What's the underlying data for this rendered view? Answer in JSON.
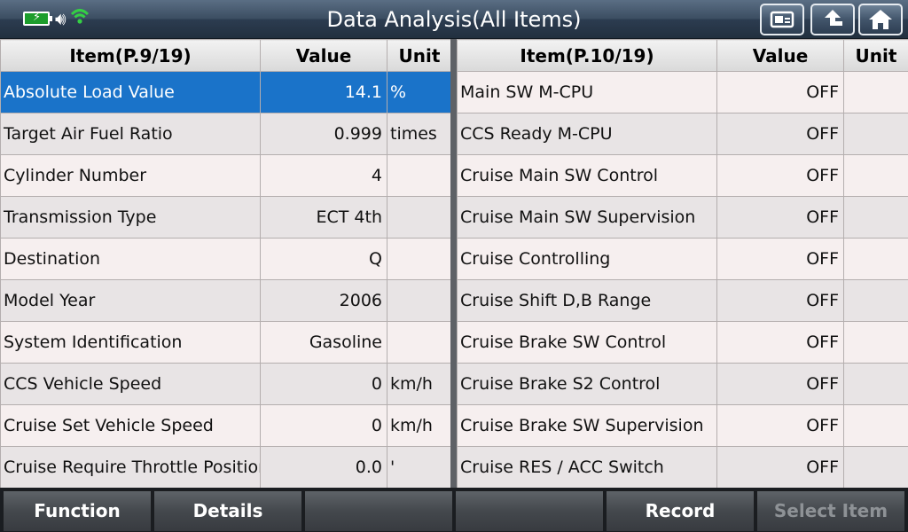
{
  "header": {
    "title": "Data Analysis(All Items)"
  },
  "icons": {
    "battery": "battery-icon",
    "volume": "volume-icon",
    "wifi": "wifi-icon",
    "screenshot": "screenshot-icon",
    "back": "back-icon",
    "home": "home-icon"
  },
  "left_table": {
    "headers": {
      "item": "Item(P.9/19)",
      "value": "Value",
      "unit": "Unit"
    },
    "rows": [
      {
        "item": "Absolute Load Value",
        "value": "14.1",
        "unit": "%"
      },
      {
        "item": "Target Air Fuel Ratio",
        "value": "0.999",
        "unit": "times"
      },
      {
        "item": "Cylinder Number",
        "value": "4",
        "unit": ""
      },
      {
        "item": "Transmission Type",
        "value": "ECT 4th",
        "unit": ""
      },
      {
        "item": "Destination",
        "value": "Q",
        "unit": ""
      },
      {
        "item": "Model Year",
        "value": "2006",
        "unit": ""
      },
      {
        "item": "System Identification",
        "value": "Gasoline",
        "unit": ""
      },
      {
        "item": "CCS Vehicle Speed",
        "value": "0",
        "unit": "km/h"
      },
      {
        "item": "Cruise Set Vehicle Speed",
        "value": "0",
        "unit": "km/h"
      },
      {
        "item": "Cruise Require Throttle Position",
        "value": "0.0",
        "unit": "'"
      }
    ]
  },
  "right_table": {
    "headers": {
      "item": "Item(P.10/19)",
      "value": "Value",
      "unit": "Unit"
    },
    "rows": [
      {
        "item": "Main SW M-CPU",
        "value": "OFF",
        "unit": ""
      },
      {
        "item": "CCS Ready M-CPU",
        "value": "OFF",
        "unit": ""
      },
      {
        "item": "Cruise Main SW Control",
        "value": "OFF",
        "unit": ""
      },
      {
        "item": "Cruise Main SW Supervision",
        "value": "OFF",
        "unit": ""
      },
      {
        "item": "Cruise Controlling",
        "value": "OFF",
        "unit": ""
      },
      {
        "item": "Cruise Shift D,B Range",
        "value": "OFF",
        "unit": ""
      },
      {
        "item": "Cruise Brake SW Control",
        "value": "OFF",
        "unit": ""
      },
      {
        "item": "Cruise Brake S2 Control",
        "value": "OFF",
        "unit": ""
      },
      {
        "item": "Cruise Brake SW Supervision",
        "value": "OFF",
        "unit": ""
      },
      {
        "item": "Cruise RES / ACC Switch",
        "value": "OFF",
        "unit": ""
      }
    ]
  },
  "toolbar": {
    "function_label": "Function",
    "details_label": "Details",
    "empty1_label": "",
    "empty2_label": "",
    "record_label": "Record",
    "select_item_label": "Select Item"
  },
  "colors": {
    "selected_row": "#1a73c9",
    "title_bar": "#3c4e62",
    "wifi": "#34d044",
    "battery": "#1d9d2c"
  }
}
